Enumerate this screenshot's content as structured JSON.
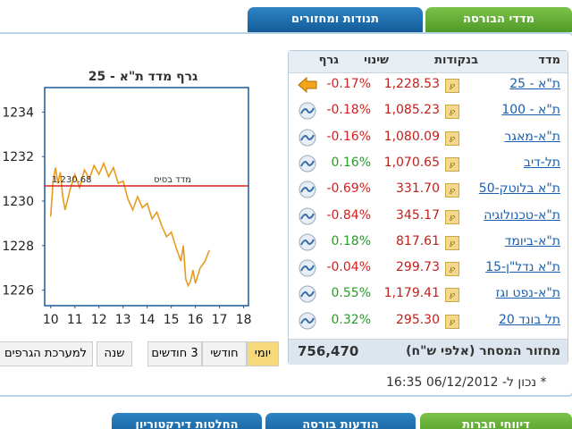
{
  "tabs_top": [
    "מדדי הבורסה",
    "תנודות ומחזורים"
  ],
  "chart": {
    "type": "line",
    "title": "גרף מדד ת\"א - 25",
    "x": [
      10.0,
      10.1,
      10.2,
      10.3,
      10.4,
      10.5,
      10.6,
      10.8,
      11.0,
      11.2,
      11.4,
      11.6,
      11.8,
      12.0,
      12.2,
      12.4,
      12.6,
      12.8,
      13.0,
      13.2,
      13.4,
      13.6,
      13.8,
      14.0,
      14.2,
      14.4,
      14.6,
      14.8,
      15.0,
      15.2,
      15.4,
      15.5,
      15.6,
      15.7,
      15.8,
      15.9,
      16.0,
      16.2,
      16.4,
      16.58
    ],
    "values": [
      1229.3,
      1230.9,
      1231.5,
      1230.8,
      1231.3,
      1230.2,
      1229.6,
      1230.5,
      1231.2,
      1230.6,
      1231.4,
      1231.0,
      1231.6,
      1231.2,
      1231.7,
      1231.1,
      1231.5,
      1230.8,
      1230.9,
      1230.1,
      1229.6,
      1230.2,
      1229.7,
      1229.9,
      1229.2,
      1229.5,
      1228.9,
      1228.4,
      1228.6,
      1227.9,
      1227.3,
      1228.0,
      1226.5,
      1226.2,
      1226.4,
      1226.9,
      1226.3,
      1227.0,
      1227.3,
      1227.8
    ],
    "color": "#e89a1c",
    "xlim": [
      9.75,
      18.2
    ],
    "ylim": [
      1225.3,
      1235.1
    ],
    "xticks": [
      10,
      11,
      12,
      13,
      14,
      15,
      16,
      17,
      18
    ],
    "yticks": [
      1226,
      1228,
      1230,
      1232,
      1234
    ],
    "base": {
      "value": 1230.68,
      "label": "1,230.68",
      "text": "מדד בסיס",
      "color": "#d42020"
    }
  },
  "ranges": [
    "יומי",
    "חודשי",
    "3 חודשים",
    "שנה",
    "למערכת הגרפים"
  ],
  "table": {
    "header": [
      "מדד",
      "בנקודות",
      "שינוי",
      "גרף"
    ],
    "rows": [
      [
        "ת\"א - 25",
        "1,228.53",
        "-0.17%"
      ],
      [
        "ת\"א - 100",
        "1,085.23",
        "-0.18%"
      ],
      [
        "ת\"א-מאגר",
        "1,080.09",
        "-0.16%"
      ],
      [
        "תל-דיב",
        "1,070.65",
        "0.16%"
      ],
      [
        "ת\"א בלוטק-50",
        "331.70",
        "-0.69%"
      ],
      [
        "ת\"א-טכנולוגיה",
        "345.17",
        "-0.84%"
      ],
      [
        "ת\"א-ביומד",
        "817.61",
        "0.18%"
      ],
      [
        "ת\"א נדל\"ן-15",
        "299.73",
        "-0.04%"
      ],
      [
        "ת\"א-נפט וגז",
        "1,179.41",
        "0.55%"
      ],
      [
        "תל בונד 20",
        "295.30",
        "0.32%"
      ]
    ],
    "footer": [
      "מחזור המסחר (אלפי ש\"ח)",
      "756,470"
    ]
  },
  "updated": "* נכון ל- 06/12/2012 16:35",
  "tabs_bottom": [
    "דיווחי חברות",
    "הודעות בורסה",
    "החלטות דירקטוריון"
  ]
}
